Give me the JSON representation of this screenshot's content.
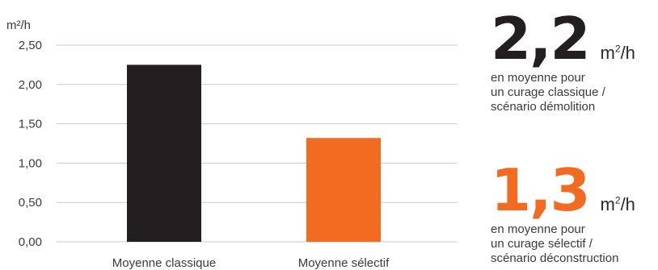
{
  "chart_data": {
    "type": "bar",
    "unit_label": "m²/h",
    "categories": [
      "Moyenne classique",
      "Moyenne sélectif"
    ],
    "values": [
      2.25,
      1.32
    ],
    "colors": [
      "#231f20",
      "#f26b21"
    ],
    "ylim": [
      0,
      2.5
    ],
    "yticks": [
      {
        "value": 0.0,
        "label": "0,00"
      },
      {
        "value": 0.5,
        "label": "0,50"
      },
      {
        "value": 1.0,
        "label": "1,00"
      },
      {
        "value": 1.5,
        "label": "1,50"
      },
      {
        "value": 2.0,
        "label": "2,00"
      },
      {
        "value": 2.5,
        "label": "2,50"
      }
    ],
    "grid": true,
    "title": "",
    "xlabel": ""
  },
  "stats": [
    {
      "value": "2,2",
      "unit_base": "m",
      "unit_sup": "2",
      "unit_tail": "/h",
      "color": "#231f20",
      "desc_lines": [
        "en moyenne pour",
        "un curage classique /",
        "scénario démolition"
      ]
    },
    {
      "value": "1,3",
      "unit_base": "m",
      "unit_sup": "2",
      "unit_tail": "/h",
      "color": "#f26b21",
      "desc_lines": [
        "en moyenne pour",
        "un curage sélectif /",
        "scénario déconstruction"
      ]
    }
  ]
}
